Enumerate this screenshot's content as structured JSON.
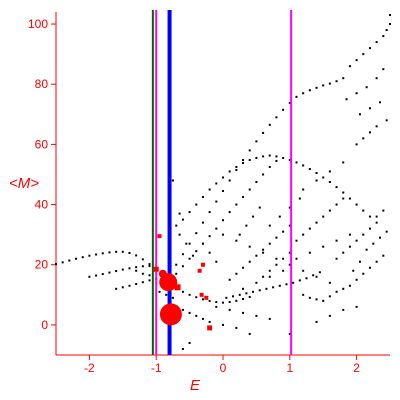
{
  "chart_data": {
    "type": "scatter",
    "xlabel": "E",
    "ylabel": "<M>",
    "xlim": [
      -2.5,
      2.5
    ],
    "ylim": [
      -10,
      104
    ],
    "x_ticks": [
      -2,
      -1,
      0,
      1,
      2
    ],
    "y_ticks": [
      0,
      20,
      40,
      60,
      80,
      100
    ],
    "grid": false,
    "colors": {
      "axis": "#ff0000",
      "points": "#000000",
      "markers": "#ff0000",
      "line_green": "#006400",
      "line_magenta": "#ff00ff",
      "line_blue": "#0000ff"
    },
    "vertical_lines": [
      {
        "x": -1.05,
        "color": "#006400",
        "width": 2
      },
      {
        "x": -1.0,
        "color": "#ff00ff",
        "width": 2
      },
      {
        "x": -0.8,
        "color": "#0000ff",
        "width": 4
      },
      {
        "x": 1.02,
        "color": "#ff00ff",
        "width": 2
      }
    ],
    "red_markers": [
      {
        "x": -0.95,
        "y": 29.5,
        "r": 2
      },
      {
        "x": -1.0,
        "y": 18.5,
        "r": 2.5
      },
      {
        "x": -0.9,
        "y": 17.0,
        "r": 4
      },
      {
        "x": -0.82,
        "y": 14.2,
        "r": 9
      },
      {
        "x": -0.78,
        "y": 3.5,
        "r": 11
      },
      {
        "x": -0.68,
        "y": 12.5,
        "r": 3
      },
      {
        "x": -0.3,
        "y": 20.0,
        "r": 2
      },
      {
        "x": -0.35,
        "y": 18.0,
        "r": 2
      },
      {
        "x": -0.32,
        "y": 10.0,
        "r": 2
      },
      {
        "x": -0.25,
        "y": 9.0,
        "r": 2
      },
      {
        "x": -0.2,
        "y": -1.0,
        "r": 2.5
      }
    ],
    "series": [
      {
        "values": [
          [
            -2.5,
            20.2
          ],
          [
            -2.4,
            20.8
          ],
          [
            -2.3,
            21.4
          ],
          [
            -2.2,
            22.0
          ],
          [
            -2.1,
            22.5
          ],
          [
            -2.0,
            23.0
          ],
          [
            -1.9,
            23.4
          ],
          [
            -1.8,
            23.8
          ],
          [
            -1.7,
            24.1
          ],
          [
            -1.6,
            24.3
          ],
          [
            -1.5,
            24.3
          ],
          [
            -1.4,
            23.9
          ],
          [
            -1.3,
            23.1
          ],
          [
            -1.2,
            21.8
          ],
          [
            -1.1,
            20.2
          ],
          [
            -1.0,
            18.8
          ],
          [
            -0.9,
            17.5
          ],
          [
            -2.0,
            16.0
          ],
          [
            -1.9,
            16.4
          ],
          [
            -1.8,
            16.9
          ],
          [
            -1.7,
            17.4
          ],
          [
            -1.6,
            17.9
          ],
          [
            -1.5,
            18.4
          ],
          [
            -1.4,
            18.8
          ],
          [
            -1.3,
            19.2
          ],
          [
            -1.2,
            19.5
          ],
          [
            -1.1,
            19.6
          ],
          [
            -1.0,
            19.0
          ],
          [
            -0.9,
            17.8
          ],
          [
            -1.6,
            12.0
          ],
          [
            -1.5,
            12.5
          ],
          [
            -1.4,
            13.0
          ],
          [
            -1.3,
            13.6
          ],
          [
            -1.2,
            14.2
          ],
          [
            -1.1,
            14.8
          ],
          [
            -1.0,
            15.3
          ],
          [
            -0.9,
            15.8
          ],
          [
            -0.7,
            12.0
          ],
          [
            -0.6,
            11.0
          ],
          [
            -0.5,
            10.0
          ],
          [
            -0.4,
            9.2
          ],
          [
            -0.3,
            8.5
          ],
          [
            -0.2,
            8.0
          ],
          [
            -0.1,
            7.6
          ],
          [
            0.0,
            7.4
          ],
          [
            0.1,
            7.6
          ],
          [
            0.2,
            8.0
          ],
          [
            0.3,
            8.6
          ],
          [
            0.4,
            9.3
          ],
          [
            -0.7,
            20.0
          ],
          [
            -0.6,
            23.5
          ],
          [
            -0.5,
            27.0
          ],
          [
            -0.4,
            30.5
          ],
          [
            -0.3,
            34.0
          ],
          [
            -0.2,
            37.5
          ],
          [
            -0.1,
            41.0
          ],
          [
            0.0,
            44.5
          ],
          [
            0.1,
            48.0
          ],
          [
            0.2,
            51.5
          ],
          [
            0.3,
            54.8
          ],
          [
            0.4,
            58.0
          ],
          [
            0.5,
            61.0
          ],
          [
            0.6,
            63.8
          ],
          [
            0.7,
            66.5
          ],
          [
            0.8,
            69.0
          ],
          [
            0.9,
            71.5
          ],
          [
            1.0,
            73.8
          ],
          [
            1.1,
            75.8
          ],
          [
            1.2,
            77.0
          ],
          [
            1.3,
            78.0
          ],
          [
            1.4,
            78.8
          ],
          [
            1.5,
            79.6
          ],
          [
            1.6,
            80.2
          ],
          [
            1.7,
            81.0
          ],
          [
            1.8,
            82.0
          ],
          [
            -0.7,
            17.0
          ],
          [
            -0.6,
            19.5
          ],
          [
            -0.5,
            22.0
          ],
          [
            -0.4,
            24.5
          ],
          [
            -0.3,
            27.0
          ],
          [
            -0.2,
            29.5
          ],
          [
            -0.1,
            32.0
          ],
          [
            0.0,
            34.8
          ],
          [
            0.1,
            37.5
          ],
          [
            0.2,
            40.0
          ],
          [
            0.3,
            42.5
          ],
          [
            0.4,
            45.0
          ],
          [
            0.5,
            47.5
          ],
          [
            0.6,
            50.0
          ],
          [
            0.7,
            52.5
          ],
          [
            0.8,
            54.5
          ],
          [
            -0.6,
            35.0
          ],
          [
            -0.5,
            37.5
          ],
          [
            -0.4,
            40.0
          ],
          [
            -0.3,
            42.5
          ],
          [
            -0.2,
            45.0
          ],
          [
            -0.1,
            47.0
          ],
          [
            0.0,
            49.0
          ],
          [
            0.1,
            51.0
          ],
          [
            0.2,
            52.5
          ],
          [
            0.3,
            53.8
          ],
          [
            0.4,
            54.8
          ],
          [
            0.5,
            55.5
          ],
          [
            0.6,
            56.0
          ],
          [
            0.7,
            56.3
          ],
          [
            0.8,
            56.0
          ],
          [
            0.9,
            55.5
          ],
          [
            1.0,
            54.8
          ],
          [
            1.1,
            54.0
          ],
          [
            1.2,
            53.0
          ],
          [
            1.3,
            51.8
          ],
          [
            1.4,
            50.5
          ],
          [
            1.5,
            49.0
          ],
          [
            1.6,
            47.5
          ],
          [
            1.7,
            45.8
          ],
          [
            1.8,
            44.0
          ],
          [
            1.9,
            42.0
          ],
          [
            2.0,
            40.0
          ],
          [
            2.1,
            38.0
          ],
          [
            2.2,
            36.0
          ],
          [
            2.3,
            34.0
          ],
          [
            1.9,
            86.0
          ],
          [
            2.0,
            88.0
          ],
          [
            2.1,
            90.0
          ],
          [
            2.2,
            92.0
          ],
          [
            2.3,
            94.0
          ],
          [
            2.4,
            96.0
          ],
          [
            2.45,
            98.0
          ],
          [
            2.5,
            100.0
          ],
          [
            2.5,
            103.0
          ],
          [
            1.85,
            75.0
          ],
          [
            2.0,
            77.0
          ],
          [
            2.15,
            79.0
          ],
          [
            2.3,
            82.0
          ],
          [
            2.4,
            85.0
          ],
          [
            2.05,
            70.0
          ],
          [
            2.2,
            72.0
          ],
          [
            2.35,
            74.0
          ],
          [
            2.0,
            60.0
          ],
          [
            2.1,
            62.0
          ],
          [
            2.2,
            64.0
          ],
          [
            2.3,
            66.0
          ],
          [
            2.45,
            68.0
          ],
          [
            0.05,
            9.0
          ],
          [
            0.15,
            9.5
          ],
          [
            0.25,
            10.0
          ],
          [
            0.35,
            10.5
          ],
          [
            0.45,
            11.0
          ],
          [
            0.55,
            11.5
          ],
          [
            0.65,
            12.0
          ],
          [
            0.75,
            12.5
          ],
          [
            0.85,
            13.0
          ],
          [
            0.95,
            13.5
          ],
          [
            1.05,
            14.0
          ],
          [
            1.15,
            14.8
          ],
          [
            1.25,
            15.5
          ],
          [
            1.35,
            16.5
          ],
          [
            1.45,
            17.5
          ],
          [
            0.1,
            15.0
          ],
          [
            0.2,
            17.0
          ],
          [
            0.3,
            19.0
          ],
          [
            0.4,
            21.0
          ],
          [
            0.5,
            23.0
          ],
          [
            0.6,
            25.0
          ],
          [
            0.7,
            27.0
          ],
          [
            0.8,
            29.0
          ],
          [
            0.9,
            31.0
          ],
          [
            1.0,
            33.0
          ],
          [
            0.0,
            30.0
          ],
          [
            0.2,
            28.0
          ],
          [
            0.4,
            26.0
          ],
          [
            0.6,
            24.0
          ],
          [
            0.8,
            22.0
          ],
          [
            1.0,
            20.0
          ],
          [
            1.2,
            18.0
          ],
          [
            1.4,
            16.0
          ],
          [
            1.6,
            14.0
          ],
          [
            1.8,
            12.0
          ],
          [
            1.1,
            28.0
          ],
          [
            1.2,
            30.0
          ],
          [
            1.3,
            32.0
          ],
          [
            1.4,
            34.0
          ],
          [
            1.5,
            36.0
          ],
          [
            1.6,
            38.0
          ],
          [
            1.7,
            40.0
          ],
          [
            1.8,
            42.0
          ],
          [
            1.2,
            10.0
          ],
          [
            1.3,
            9.0
          ],
          [
            1.4,
            8.5
          ],
          [
            1.5,
            8.0
          ],
          [
            1.6,
            9.5
          ],
          [
            1.7,
            11.0
          ],
          [
            1.9,
            13.0
          ],
          [
            2.0,
            15.0
          ],
          [
            2.1,
            17.0
          ],
          [
            2.2,
            19.0
          ],
          [
            2.3,
            21.0
          ],
          [
            2.4,
            23.0
          ],
          [
            1.7,
            22.0
          ],
          [
            1.8,
            24.0
          ],
          [
            1.9,
            26.0
          ],
          [
            2.0,
            28.0
          ],
          [
            2.1,
            30.0
          ],
          [
            2.2,
            32.0
          ],
          [
            2.3,
            36.0
          ],
          [
            2.4,
            38.0
          ],
          [
            1.95,
            18.0
          ],
          [
            2.05,
            21.0
          ],
          [
            2.15,
            25.0
          ],
          [
            2.25,
            27.0
          ],
          [
            2.35,
            29.0
          ],
          [
            2.45,
            31.0
          ],
          [
            0.25,
            30.0
          ],
          [
            0.35,
            33.0
          ],
          [
            0.45,
            36.0
          ],
          [
            0.55,
            39.0
          ],
          [
            0.7,
            33.0
          ],
          [
            0.85,
            36.0
          ],
          [
            1.0,
            39.0
          ],
          [
            1.15,
            42.0
          ],
          [
            1.2,
            45.0
          ],
          [
            1.4,
            48.0
          ],
          [
            1.6,
            51.0
          ],
          [
            1.8,
            54.0
          ],
          [
            0.6,
            16.0
          ],
          [
            0.7,
            18.0
          ],
          [
            0.8,
            20.0
          ],
          [
            0.9,
            22.0
          ],
          [
            1.0,
            24.0
          ],
          [
            0.3,
            12.0
          ],
          [
            0.5,
            14.0
          ],
          [
            0.7,
            16.0
          ],
          [
            0.9,
            18.0
          ],
          [
            1.1,
            22.0
          ],
          [
            1.3,
            24.0
          ],
          [
            1.5,
            26.0
          ],
          [
            1.7,
            28.0
          ],
          [
            1.9,
            30.0
          ],
          [
            -0.1,
            21.0
          ],
          [
            -0.2,
            24.0
          ],
          [
            -0.3,
            27.0
          ],
          [
            -0.7,
            33.0
          ],
          [
            -0.65,
            37.0
          ],
          [
            -0.75,
            48.0
          ],
          [
            -0.6,
            5.0
          ],
          [
            -0.5,
            4.0
          ],
          [
            -0.4,
            3.0
          ],
          [
            -0.3,
            2.0
          ],
          [
            -0.2,
            1.0
          ],
          [
            0.0,
            0.0
          ],
          [
            0.2,
            -1.0
          ],
          [
            0.4,
            -3.0
          ],
          [
            -0.1,
            6.0
          ],
          [
            0.1,
            5.0
          ],
          [
            0.3,
            4.0
          ],
          [
            0.5,
            3.0
          ],
          [
            0.7,
            2.0
          ],
          [
            1.0,
            -3.0
          ],
          [
            1.4,
            1.0
          ],
          [
            1.6,
            3.0
          ],
          [
            1.8,
            5.0
          ],
          [
            2.0,
            6.0
          ],
          [
            -0.45,
            23.0
          ],
          [
            -0.55,
            27.0
          ],
          [
            -0.65,
            30.0
          ],
          [
            -1.3,
            18.0
          ],
          [
            -1.2,
            17.0
          ],
          [
            -1.1,
            16.5
          ],
          [
            -0.95,
            11.0
          ],
          [
            -0.85,
            10.0
          ],
          [
            -0.75,
            9.0
          ],
          [
            -0.5,
            -6.0
          ],
          [
            -0.6,
            -8.0
          ]
        ]
      }
    ]
  }
}
